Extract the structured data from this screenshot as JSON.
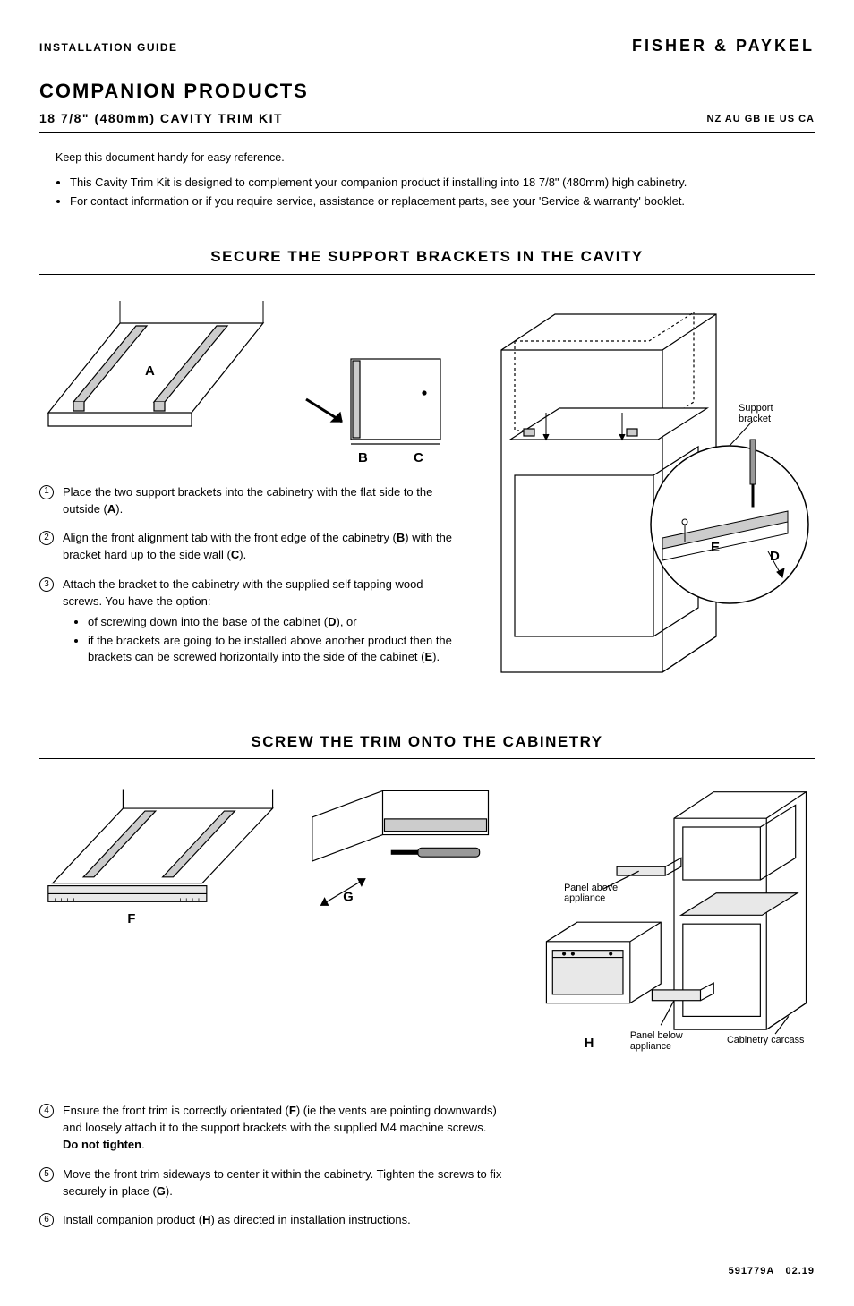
{
  "header": {
    "guide_label": "INSTALLATION GUIDE",
    "brand": "FISHER & PAYKEL"
  },
  "title": {
    "main": "COMPANION PRODUCTS",
    "sub": "18 7/8\" (480mm) CAVITY TRIM KIT",
    "countries": "NZ AU GB IE US CA"
  },
  "keep_note": "Keep this document handy for easy reference.",
  "intro_bullets": [
    "This Cavity Trim Kit is designed to complement your companion product if installing into 18 7/8\" (480mm) high cabinetry.",
    "For contact information or if you require service, assistance or replacement parts, see your 'Service & warranty' booklet."
  ],
  "section1": {
    "title": "SECURE THE SUPPORT BRACKETS IN THE CAVITY",
    "labels": {
      "A": "A",
      "B": "B",
      "C": "C",
      "D": "D",
      "E": "E"
    },
    "callout_support": "Support bracket",
    "steps": [
      {
        "n": "1",
        "html": "Place the two support brackets into the cabinetry with the flat side to the outside (<b>A</b>)."
      },
      {
        "n": "2",
        "html": "Align the front alignment tab with the front edge of the cabinetry (<b>B</b>) with the bracket hard up to the side wall (<b>C</b>)."
      },
      {
        "n": "3",
        "html": "Attach the bracket to the cabinetry with the supplied self tapping wood screws. You have the option:",
        "sub": [
          "of screwing down into the base of the cabinet (<b>D</b>), or",
          "if the brackets are going to be installed above another product then the brackets can be screwed horizontally into the side of the cabinet (<b>E</b>)."
        ]
      }
    ]
  },
  "section2": {
    "title": "SCREW THE TRIM ONTO THE CABINETRY",
    "labels": {
      "F": "F",
      "G": "G",
      "H": "H"
    },
    "callout_panel_above": "Panel above appliance",
    "callout_panel_below": "Panel below appliance",
    "callout_carcass": "Cabinetry carcass",
    "steps": [
      {
        "n": "4",
        "html": "Ensure the front trim is correctly orientated (<b>F</b>) (ie the vents are pointing downwards) and loosely attach it to the support brackets with the supplied M4 machine screws. <b>Do not tighten</b>."
      },
      {
        "n": "5",
        "html": "Move the front trim sideways to center it within the cabinetry. Tighten the screws to fix securely in place (<b>G</b>)."
      },
      {
        "n": "6",
        "html": "Install companion product (<b>H</b>) as directed in installation instructions."
      }
    ]
  },
  "footer": {
    "doc": "591779A",
    "date": "02.19"
  },
  "colors": {
    "line": "#000000",
    "fill_light": "#e8e8e8",
    "fill_mid": "#cccccc",
    "fill_dark": "#999999"
  }
}
